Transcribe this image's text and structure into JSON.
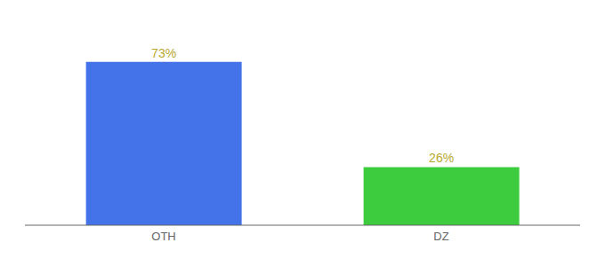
{
  "chart_data": {
    "type": "bar",
    "categories": [
      "OTH",
      "DZ"
    ],
    "values": [
      73,
      26
    ],
    "colors": [
      "#4472e8",
      "#3dcc3d"
    ],
    "ylim": [
      0,
      88
    ],
    "data_labels": true,
    "value_labels": [
      "73%",
      "26%"
    ],
    "tick_labels": "x",
    "grid": false
  }
}
